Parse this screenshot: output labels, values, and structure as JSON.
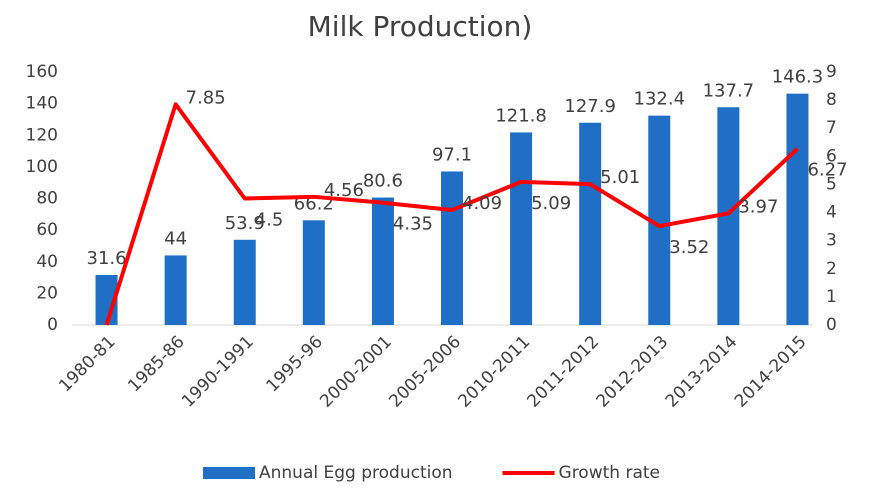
{
  "chart_data": {
    "type": "bar_line",
    "title": "Milk Production)",
    "categories": [
      "1980-81",
      "1985-86",
      "1990-1991",
      "1995-96",
      "2000-2001",
      "2005-2006",
      "2010-2011",
      "2011-2012",
      "2012-2013",
      "2013-2014",
      "2014-2015"
    ],
    "series": [
      {
        "name": "Annual Egg production",
        "color": "#1f6fc6",
        "type": "bar",
        "values": [
          31.6,
          44,
          53.9,
          66.2,
          80.6,
          97.1,
          121.8,
          127.9,
          132.4,
          137.7,
          146.3
        ]
      },
      {
        "name": "Growth rate",
        "color": "#ff0000",
        "type": "line",
        "axis": "y2",
        "values": [
          0,
          7.85,
          4.5,
          4.56,
          4.35,
          4.09,
          5.09,
          5.01,
          3.52,
          3.97,
          6.27
        ],
        "value_labels": [
          null,
          "7.85",
          "4.5",
          "4.56",
          "4.35",
          "4.09",
          "5.09",
          "5.01",
          "3.52",
          "3.97",
          "6.27"
        ]
      }
    ],
    "ylim": [
      0,
      160
    ],
    "yticks": [
      0,
      20,
      40,
      60,
      80,
      100,
      120,
      140,
      160
    ],
    "y2lim": [
      0,
      9
    ],
    "y2ticks": [
      0,
      1,
      2,
      3,
      4,
      5,
      6,
      7,
      8,
      9
    ],
    "legend": "bottom"
  }
}
